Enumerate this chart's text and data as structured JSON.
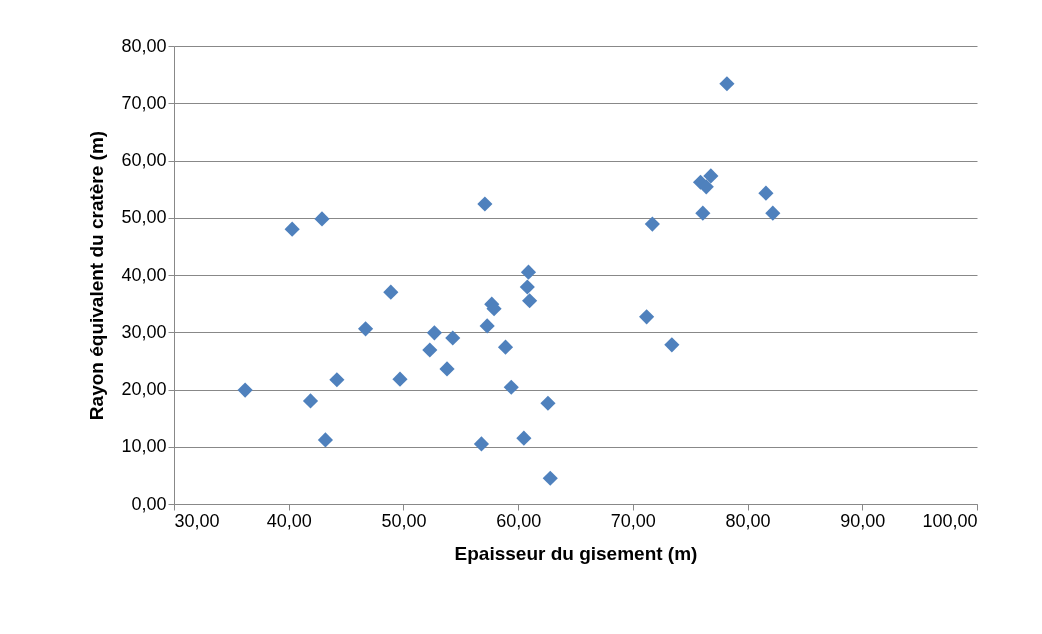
{
  "chart_data": {
    "type": "scatter",
    "xlabel": "Epaisseur du gisement (m)",
    "ylabel": "Rayon équivalent du cratère (m)",
    "x": [
      36.2,
      40.3,
      42.9,
      41.9,
      43.2,
      44.2,
      46.7,
      48.9,
      49.7,
      52.3,
      52.7,
      54.3,
      53.8,
      57.1,
      56.8,
      57.3,
      57.7,
      57.9,
      58.9,
      59.4,
      60.9,
      60.8,
      61.0,
      60.5,
      62.6,
      62.8,
      71.2,
      71.7,
      73.4,
      76.1,
      75.9,
      76.4,
      76.8,
      78.2,
      81.6,
      82.2
    ],
    "series": [
      {
        "color": "#4f81bd",
        "values": [
          19.9,
          48.0,
          49.8,
          18.0,
          11.2,
          21.7,
          30.6,
          37.0,
          21.8,
          26.9,
          29.9,
          29.0,
          23.6,
          52.4,
          10.5,
          31.1,
          34.9,
          34.1,
          27.4,
          20.4,
          40.5,
          37.9,
          35.5,
          11.5,
          17.6,
          4.5,
          32.7,
          48.9,
          27.8,
          50.8,
          56.2,
          55.4,
          57.3,
          73.4,
          54.3,
          50.8
        ]
      }
    ],
    "xlim": [
      30,
      100
    ],
    "ylim": [
      0,
      80
    ],
    "xticks": [
      {
        "value": 30,
        "label": "30,00"
      },
      {
        "value": 40,
        "label": "40,00"
      },
      {
        "value": 50,
        "label": "50,00"
      },
      {
        "value": 60,
        "label": "60,00"
      },
      {
        "value": 70,
        "label": "70,00"
      },
      {
        "value": 80,
        "label": "80,00"
      },
      {
        "value": 90,
        "label": "90,00"
      },
      {
        "value": 100,
        "label": "100,00"
      }
    ],
    "yticks": [
      {
        "value": 0,
        "label": "0,00"
      },
      {
        "value": 10,
        "label": "10,00"
      },
      {
        "value": 20,
        "label": "20,00"
      },
      {
        "value": 30,
        "label": "30,00"
      },
      {
        "value": 40,
        "label": "40,00"
      },
      {
        "value": 50,
        "label": "50,00"
      },
      {
        "value": 60,
        "label": "60,00"
      },
      {
        "value": 70,
        "label": "70,00"
      },
      {
        "value": 80,
        "label": "80,00"
      }
    ],
    "grid": "y",
    "marker": "diamond"
  }
}
